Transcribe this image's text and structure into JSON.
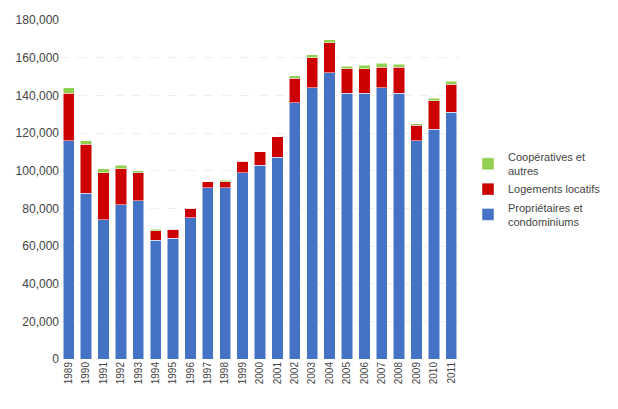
{
  "chart_data": {
    "type": "bar",
    "stacked": true,
    "categories": [
      "1989",
      "1990",
      "1991",
      "1992",
      "1993",
      "1994",
      "1995",
      "1996",
      "1997",
      "1998",
      "1999",
      "2000",
      "2001",
      "2002",
      "2003",
      "2004",
      "2005",
      "2006",
      "2007",
      "2008",
      "2009",
      "2010",
      "2011"
    ],
    "series": [
      {
        "name": "Propriétaires et\ncondominiums",
        "color": "#4472C4",
        "values": [
          116000,
          88000,
          74000,
          82000,
          84000,
          63000,
          64000,
          75000,
          91000,
          91000,
          99000,
          103000,
          107000,
          136000,
          144000,
          152000,
          141000,
          141000,
          144000,
          141000,
          116000,
          122000,
          131000
        ]
      },
      {
        "name": "Logements locatifs",
        "color": "#CC0000",
        "values": [
          25000,
          26000,
          25000,
          19000,
          15000,
          5000,
          5000,
          5000,
          3000,
          3000,
          6000,
          7000,
          11000,
          13000,
          16000,
          16000,
          13000,
          13000,
          11000,
          14000,
          8000,
          15000,
          15000
        ]
      },
      {
        "name": "Coopératives et\nautres",
        "color": "#92D050",
        "values": [
          3000,
          2000,
          2000,
          2000,
          1000,
          1000,
          0,
          0,
          0,
          1000,
          0,
          0,
          0,
          1500,
          1500,
          1500,
          1500,
          2000,
          2000,
          1500,
          1000,
          1500,
          1500
        ]
      }
    ],
    "ylim": [
      0,
      180000
    ],
    "yticks": [
      0,
      {
        "value": 20000,
        "label": "20,000"
      },
      {
        "value": 40000,
        "label": "40,000"
      },
      {
        "value": 60000,
        "label": "60,000"
      },
      {
        "value": 80000,
        "label": "80,000"
      },
      {
        "value": 100000,
        "label": "100,000"
      },
      {
        "value": 120000,
        "label": "120,000"
      },
      {
        "value": 140000,
        "label": "140,000"
      },
      {
        "value": 160000,
        "label": "160,000"
      },
      {
        "value": 180000,
        "label": "180,000"
      }
    ],
    "grid": true,
    "legend": "right"
  }
}
